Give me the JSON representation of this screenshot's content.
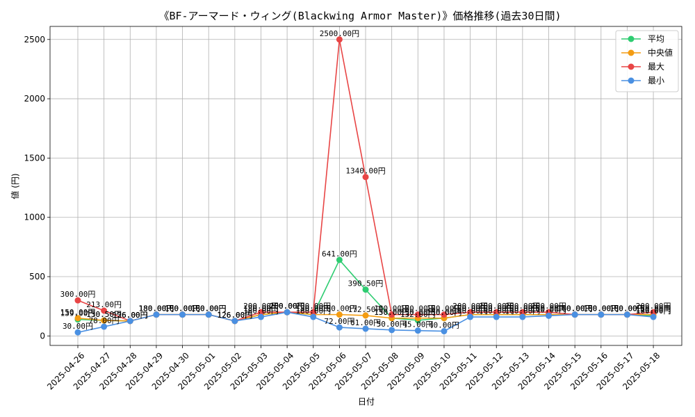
{
  "chart_data": {
    "type": "line",
    "title": "《BF-アーマード・ウィング(Blackwing Armor Master)》価格推移(過去30日間)",
    "xlabel": "日付",
    "ylabel": "値 (円)",
    "ylim": [
      -80,
      2610
    ],
    "yticks": [
      0,
      500,
      1000,
      1500,
      2000,
      2500
    ],
    "grid": true,
    "legend_position": "top-right",
    "categories": [
      "2025-04-26",
      "2025-04-27",
      "2025-04-28",
      "2025-04-29",
      "2025-04-30",
      "2025-05-01",
      "2025-05-02",
      "2025-05-03",
      "2025-05-04",
      "2025-05-05",
      "2025-05-06",
      "2025-05-07",
      "2025-05-08",
      "2025-05-09",
      "2025-05-10",
      "2025-05-11",
      "2025-05-12",
      "2025-05-13",
      "2025-05-14",
      "2025-05-15",
      "2025-05-16",
      "2025-05-17",
      "2025-05-18"
    ],
    "series": [
      {
        "name": "平均",
        "color": "#2ecc71",
        "values": [
          139.0,
          130.5,
          126.0,
          180.0,
          180.0,
          180.0,
          126.0,
          180.0,
          200.0,
          180.0,
          641.0,
          390.5,
          150.0,
          132.0,
          150.0,
          180.0,
          180.0,
          180.0,
          180.0,
          180.0,
          180.0,
          180.0,
          170.0
        ],
        "labels": [
          "139.00円",
          "130.50円",
          "126.00円",
          "180.00円",
          "180.00円",
          "180.00円",
          "126.00円",
          "180.00円",
          "200.00円",
          "180.00円",
          "641.00円",
          "390.50円",
          "150.00円",
          "132.00円",
          "150.00円",
          "180.00円",
          "180.00円",
          "180.00円",
          "180.00円",
          "180.00円",
          "180.00円",
          "180.00円",
          "170.00円"
        ]
      },
      {
        "name": "中央値",
        "color": "#f39c12",
        "values": [
          150.0,
          130.5,
          126.0,
          180.0,
          180.0,
          180.0,
          126.0,
          180.0,
          200.0,
          180.0,
          180.0,
          172.5,
          150.0,
          150.0,
          150.0,
          180.0,
          180.0,
          180.0,
          180.0,
          180.0,
          180.0,
          180.0,
          180.0
        ],
        "labels": [
          "150.00円",
          "130.50円",
          "126.00円",
          "180.00円",
          "180.00円",
          "180.00円",
          "126.00円",
          "180.00円",
          "200.00円",
          "180.00円",
          "180.00円",
          "172.50円",
          "150.00円",
          "150.00円",
          "150.00円",
          "180.00円",
          "180.00円",
          "180.00円",
          "180.00円",
          "180.00円",
          "180.00円",
          "180.00円",
          "180.00円"
        ]
      },
      {
        "name": "最大",
        "color": "#e84545",
        "values": [
          300.0,
          213.0,
          126.0,
          180.0,
          180.0,
          180.0,
          126.0,
          200.0,
          200.0,
          200.0,
          2500.0,
          1340.0,
          180.0,
          180.0,
          180.0,
          200.0,
          200.0,
          200.0,
          200.0,
          180.0,
          180.0,
          180.0,
          200.0
        ],
        "labels": [
          "300.00円",
          "213.00円",
          "126.00円",
          "180.00円",
          "180.00円",
          "180.00円",
          "126.00円",
          "200.00円",
          "200.00円",
          "200.00円",
          "2500.00円",
          "1340.00円",
          "180.00円",
          "180.00円",
          "180.00円",
          "200.00円",
          "200.00円",
          "200.00円",
          "200.00円",
          "180.00円",
          "180.00円",
          "180.00円",
          "200.00円"
        ]
      },
      {
        "name": "最小",
        "color": "#4a90e2",
        "values": [
          30.0,
          78.0,
          126.0,
          180.0,
          180.0,
          180.0,
          126.0,
          160.0,
          200.0,
          160.0,
          72.0,
          61.0,
          50.0,
          45.0,
          40.0,
          160.0,
          160.0,
          160.0,
          170.0,
          180.0,
          180.0,
          180.0,
          160.0
        ],
        "labels": [
          "30.00円",
          "78.00円",
          "126.00円",
          "180.00円",
          "180.00円",
          "180.00円",
          "126.00円",
          "160.00円",
          "200.00円",
          "160.00円",
          "72.00円",
          "61.00円",
          "50.00円",
          "45.00円",
          "40.00円",
          "160.00円",
          "160.00円",
          "160.00円",
          "170.00円",
          "180.00円",
          "180.00円",
          "180.00円",
          "160.00円"
        ]
      }
    ]
  }
}
